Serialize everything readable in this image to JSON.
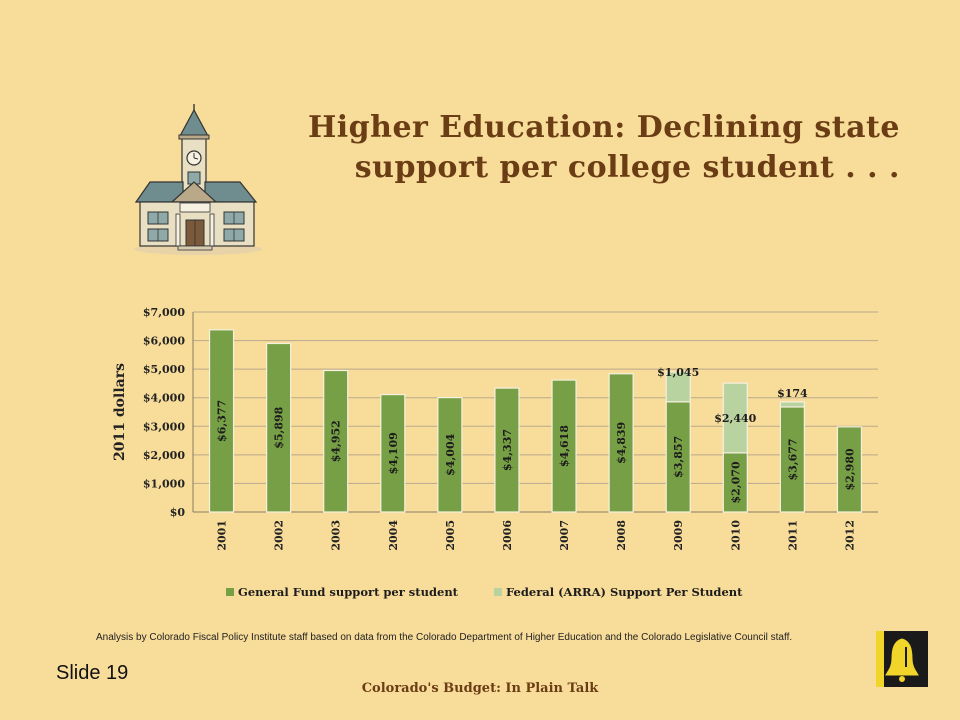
{
  "slide": {
    "title_line1": "Higher Education: Declining state",
    "title_line2": "support per college student . . .",
    "footnote": "Analysis by Colorado Fiscal Policy Institute staff based on data from the Colorado Department of Higher Education and the Colorado Legislative Council staff.",
    "slide_number": "Slide 19",
    "footer": "Colorado's Budget: In Plain Talk"
  },
  "icons": {
    "illustration": "college-building-icon",
    "logo": "bell-logo-icon"
  },
  "chart_data": {
    "type": "bar",
    "stacked": true,
    "ylabel": "2011 dollars",
    "ylim": [
      0,
      7000
    ],
    "y_ticks": [
      "$0",
      "$1,000",
      "$2,000",
      "$3,000",
      "$4,000",
      "$5,000",
      "$6,000",
      "$7,000"
    ],
    "grid": true,
    "legend_position": "bottom",
    "categories": [
      "2001",
      "2002",
      "2003",
      "2004",
      "2005",
      "2006",
      "2007",
      "2008",
      "2009",
      "2010",
      "2011",
      "2012"
    ],
    "series": [
      {
        "name": "General Fund support per student",
        "color": "#77a046",
        "values": [
          6377,
          5898,
          4952,
          4109,
          4004,
          4337,
          4618,
          4839,
          3857,
          2070,
          3677,
          2980
        ],
        "labels": [
          "$6,377",
          "$5,898",
          "$4,952",
          "$4,109",
          "$4,004",
          "$4,337",
          "$4,618",
          "$4,839",
          "$3,857",
          "$2,070",
          "$3,677",
          "$2,980"
        ]
      },
      {
        "name": "Federal (ARRA) Support Per Student",
        "color": "#b9d3a0",
        "values": [
          0,
          0,
          0,
          0,
          0,
          0,
          0,
          0,
          1045,
          2440,
          174,
          0
        ],
        "labels": [
          "",
          "",
          "",
          "",
          "",
          "",
          "",
          "",
          "$1,045",
          "$2,440",
          "$174",
          ""
        ]
      }
    ]
  }
}
